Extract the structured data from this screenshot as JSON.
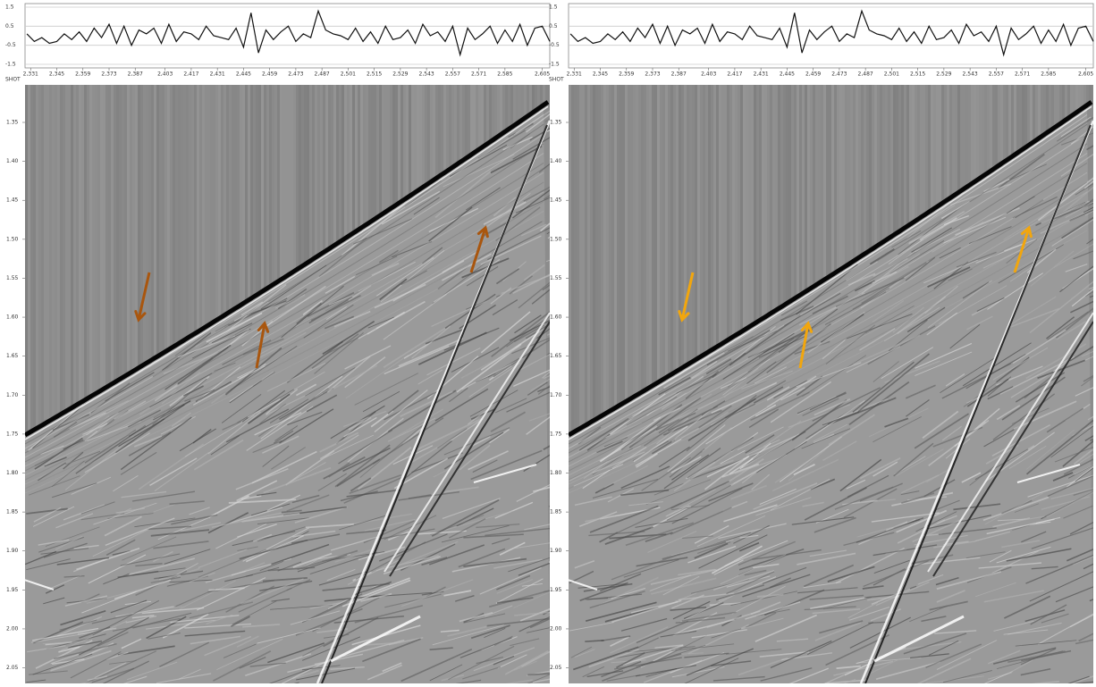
{
  "chart_data": [
    {
      "type": "line",
      "color": "#111111",
      "grid": true,
      "x": [
        2329,
        2333,
        2337,
        2341,
        2345,
        2349,
        2353,
        2357,
        2361,
        2365,
        2369,
        2373,
        2377,
        2381,
        2385,
        2389,
        2393,
        2397,
        2401,
        2405,
        2409,
        2413,
        2417,
        2421,
        2425,
        2429,
        2433,
        2437,
        2441,
        2445,
        2449,
        2453,
        2457,
        2461,
        2465,
        2469,
        2473,
        2477,
        2481,
        2485,
        2489,
        2493,
        2497,
        2501,
        2505,
        2509,
        2513,
        2517,
        2521,
        2525,
        2529,
        2533,
        2537,
        2541,
        2545,
        2549,
        2553,
        2557,
        2561,
        2565,
        2569,
        2573,
        2577,
        2581,
        2585,
        2589,
        2593,
        2597,
        2601,
        2605,
        2609
      ],
      "values": [
        0.1,
        -0.3,
        -0.1,
        -0.4,
        -0.3,
        0.1,
        -0.2,
        0.2,
        -0.3,
        0.4,
        -0.1,
        0.6,
        -0.4,
        0.5,
        -0.5,
        0.3,
        0.1,
        0.4,
        -0.4,
        0.6,
        -0.3,
        0.2,
        0.1,
        -0.2,
        0.5,
        0.0,
        -0.1,
        -0.2,
        0.4,
        -0.6,
        1.2,
        -0.9,
        0.3,
        -0.2,
        0.2,
        0.5,
        -0.3,
        0.1,
        -0.1,
        1.3,
        0.3,
        0.1,
        0.0,
        -0.2,
        0.4,
        -0.3,
        0.2,
        -0.4,
        0.5,
        -0.2,
        -0.1,
        0.3,
        -0.4,
        0.6,
        0.0,
        0.2,
        -0.3,
        0.5,
        -1.0,
        0.4,
        -0.2,
        0.1,
        0.5,
        -0.4,
        0.3,
        -0.3,
        0.6,
        -0.5,
        0.4,
        0.5,
        -0.3
      ],
      "xlim": [
        2328,
        2609
      ],
      "ylim": [
        -1.5,
        1.5
      ],
      "yticks": [
        1.5,
        0.5,
        -0.5,
        -1.5
      ],
      "xticks": [
        {
          "value": 2331,
          "label": "2,331"
        },
        {
          "value": 2345,
          "label": "2,345"
        },
        {
          "value": 2359,
          "label": "2,359"
        },
        {
          "value": 2373,
          "label": "2,373"
        },
        {
          "value": 2387,
          "label": "2,387"
        },
        {
          "value": 2403,
          "label": "2,403"
        },
        {
          "value": 2417,
          "label": "2,417"
        },
        {
          "value": 2431,
          "label": "2,431"
        },
        {
          "value": 2445,
          "label": "2,445"
        },
        {
          "value": 2459,
          "label": "2,459"
        },
        {
          "value": 2473,
          "label": "2,473"
        },
        {
          "value": 2487,
          "label": "2,487"
        },
        {
          "value": 2501,
          "label": "2,501"
        },
        {
          "value": 2515,
          "label": "2,515"
        },
        {
          "value": 2529,
          "label": "2,529"
        },
        {
          "value": 2543,
          "label": "2,543"
        },
        {
          "value": 2557,
          "label": "2,557"
        },
        {
          "value": 2571,
          "label": "2,571"
        },
        {
          "value": 2585,
          "label": "2,585"
        },
        {
          "value": 2605,
          "label": "2,605"
        }
      ]
    },
    {
      "type": "seismic",
      "ylabel": "SHOT",
      "arrow_color": "#a9560e",
      "ylim": [
        1.3,
        2.07
      ],
      "yticks": [
        1.35,
        {
          "value": 1.4,
          "label": "1.40"
        },
        1.45,
        {
          "value": 1.5,
          "label": "1.50"
        },
        1.55,
        {
          "value": 1.6,
          "label": "1.60"
        },
        1.65,
        {
          "value": 1.7,
          "label": "1.70"
        },
        1.75,
        {
          "value": 1.8,
          "label": "1.80"
        },
        1.85,
        {
          "value": 1.9,
          "label": "1.90"
        },
        1.95,
        {
          "value": 2,
          "label": "2.00"
        },
        2.05
      ]
    },
    {
      "type": "line",
      "color": "#111111",
      "grid": true,
      "x": [
        2329,
        2333,
        2337,
        2341,
        2345,
        2349,
        2353,
        2357,
        2361,
        2365,
        2369,
        2373,
        2377,
        2381,
        2385,
        2389,
        2393,
        2397,
        2401,
        2405,
        2409,
        2413,
        2417,
        2421,
        2425,
        2429,
        2433,
        2437,
        2441,
        2445,
        2449,
        2453,
        2457,
        2461,
        2465,
        2469,
        2473,
        2477,
        2481,
        2485,
        2489,
        2493,
        2497,
        2501,
        2505,
        2509,
        2513,
        2517,
        2521,
        2525,
        2529,
        2533,
        2537,
        2541,
        2545,
        2549,
        2553,
        2557,
        2561,
        2565,
        2569,
        2573,
        2577,
        2581,
        2585,
        2589,
        2593,
        2597,
        2601,
        2605,
        2609
      ],
      "values": [
        0.1,
        -0.3,
        -0.1,
        -0.4,
        -0.3,
        0.1,
        -0.2,
        0.2,
        -0.3,
        0.4,
        -0.1,
        0.6,
        -0.4,
        0.5,
        -0.5,
        0.3,
        0.1,
        0.4,
        -0.4,
        0.6,
        -0.3,
        0.2,
        0.1,
        -0.2,
        0.5,
        0.0,
        -0.1,
        -0.2,
        0.4,
        -0.6,
        1.2,
        -0.9,
        0.3,
        -0.2,
        0.2,
        0.5,
        -0.3,
        0.1,
        -0.1,
        1.3,
        0.3,
        0.1,
        0.0,
        -0.2,
        0.4,
        -0.3,
        0.2,
        -0.4,
        0.5,
        -0.2,
        -0.1,
        0.3,
        -0.4,
        0.6,
        0.0,
        0.2,
        -0.3,
        0.5,
        -1.0,
        0.4,
        -0.2,
        0.1,
        0.5,
        -0.4,
        0.3,
        -0.3,
        0.6,
        -0.5,
        0.4,
        0.5,
        -0.3
      ],
      "xlim": [
        2328,
        2609
      ],
      "ylim": [
        -1.5,
        1.5
      ],
      "yticks": [
        1.5,
        0.5,
        -0.5,
        -1.5
      ],
      "xticks": [
        {
          "value": 2331,
          "label": "2,331"
        },
        {
          "value": 2345,
          "label": "2,345"
        },
        {
          "value": 2359,
          "label": "2,359"
        },
        {
          "value": 2373,
          "label": "2,373"
        },
        {
          "value": 2387,
          "label": "2,387"
        },
        {
          "value": 2403,
          "label": "2,403"
        },
        {
          "value": 2417,
          "label": "2,417"
        },
        {
          "value": 2431,
          "label": "2,431"
        },
        {
          "value": 2445,
          "label": "2,445"
        },
        {
          "value": 2459,
          "label": "2,459"
        },
        {
          "value": 2473,
          "label": "2,473"
        },
        {
          "value": 2487,
          "label": "2,487"
        },
        {
          "value": 2501,
          "label": "2,501"
        },
        {
          "value": 2515,
          "label": "2,515"
        },
        {
          "value": 2529,
          "label": "2,529"
        },
        {
          "value": 2543,
          "label": "2,543"
        },
        {
          "value": 2557,
          "label": "2,557"
        },
        {
          "value": 2571,
          "label": "2,571"
        },
        {
          "value": 2585,
          "label": "2,585"
        },
        {
          "value": 2605,
          "label": "2,605"
        }
      ]
    },
    {
      "type": "seismic",
      "ylabel": "SHOT",
      "arrow_color": "#f2a60d",
      "ylim": [
        1.3,
        2.07
      ],
      "yticks": [
        1.35,
        {
          "value": 1.4,
          "label": "1.40"
        },
        1.45,
        {
          "value": 1.5,
          "label": "1.50"
        },
        1.55,
        {
          "value": 1.6,
          "label": "1.60"
        },
        1.65,
        {
          "value": 1.7,
          "label": "1.70"
        },
        1.75,
        {
          "value": 1.8,
          "label": "1.80"
        },
        1.85,
        {
          "value": 1.9,
          "label": "1.90"
        },
        1.95,
        {
          "value": 2,
          "label": "2.00"
        },
        2.05
      ]
    }
  ]
}
